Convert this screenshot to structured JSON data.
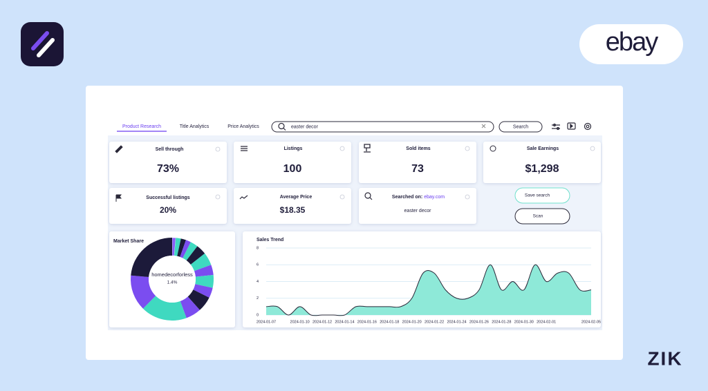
{
  "app": {
    "brand": "ebay",
    "footer_logo": "ZIK"
  },
  "tabs": [
    "Product Research",
    "Title Analytics",
    "Price Analytics"
  ],
  "search": {
    "query": "easter decor",
    "button": "Search"
  },
  "cards": [
    {
      "label": "Sell through",
      "value": "73%"
    },
    {
      "label": "Listings",
      "value": "100"
    },
    {
      "label": "Sold items",
      "value": "73"
    },
    {
      "label": "Sale Earnings",
      "value": "$1,298"
    },
    {
      "label": "Successful listings",
      "value": "20%"
    },
    {
      "label": "Average Price",
      "value": "$18.35"
    }
  ],
  "searched_on": {
    "label": "Searched on:",
    "site": "ebay.com",
    "query": "easter decor"
  },
  "buttons": [
    "Save search",
    "Scan"
  ],
  "chart_data": [
    {
      "type": "pie",
      "title": "Market Share",
      "categories": [
        "homedecorforless",
        null,
        null,
        null,
        null,
        null,
        null,
        null,
        null,
        null,
        null,
        null,
        null,
        null,
        null
      ],
      "values": [
        1.4,
        2,
        2,
        2,
        3,
        4,
        5,
        4,
        5,
        4,
        6,
        6,
        18,
        14,
        23.6
      ],
      "value_labels": [
        "1.4%",
        null,
        null,
        null,
        null,
        null,
        null,
        null,
        null,
        null,
        null,
        null,
        null,
        null,
        null
      ],
      "colors": [
        "#8a5cf6",
        "#3fd9c0",
        "#1c1a3a",
        "#7b4df0",
        "#3fd9c0",
        "#1c1a3a",
        "#3fd9c0",
        "#7b4df0",
        "#3fd9c0",
        "#7b4df0",
        "#1c1a3a",
        "#7b4df0",
        "#3fd9c0",
        "#7b4df0",
        "#1c1a3a"
      ]
    },
    {
      "type": "area",
      "title": "Sales Trend",
      "x": [
        "2024-01-07",
        "2024-01-08",
        "2024-01-09",
        "2024-01-10",
        "2024-01-11",
        "2024-01-12",
        "2024-01-13",
        "2024-01-14",
        "2024-01-15",
        "2024-01-16",
        "2024-01-17",
        "2024-01-18",
        "2024-01-19",
        "2024-01-20",
        "2024-01-21",
        "2024-01-22",
        "2024-01-23",
        "2024-01-24",
        "2024-01-25",
        "2024-01-26",
        "2024-01-27",
        "2024-01-28",
        "2024-01-29",
        "2024-01-30",
        "2024-01-31",
        "2024-02-01",
        "2024-02-02",
        "2024-02-03",
        "2024-02-04",
        "2024-02-05"
      ],
      "values": [
        1,
        1,
        0,
        1,
        0,
        0,
        0,
        0,
        1,
        1,
        1,
        1,
        1,
        2,
        5,
        5,
        3,
        2,
        2,
        3,
        6,
        3,
        4,
        3,
        6,
        4,
        5,
        5,
        3,
        3
      ],
      "xlim": [
        "2024-01-07",
        "2024-02-05"
      ],
      "xticks": [
        "2024-01-07",
        "2024-01-10",
        "2024-01-12",
        "2024-01-14",
        "2024-01-16",
        "2024-01-18",
        "2024-01-20",
        "2024-01-22",
        "2024-01-24",
        "2024-01-26",
        "2024-01-28",
        "2024-01-30",
        "2024-02-01",
        "2024-02-05"
      ],
      "ylim": [
        0,
        8
      ],
      "yticks": [
        0,
        2,
        4,
        6,
        8
      ],
      "grid": true,
      "fill_color": "#8ee9d8",
      "line_color": "#2a2838"
    }
  ]
}
